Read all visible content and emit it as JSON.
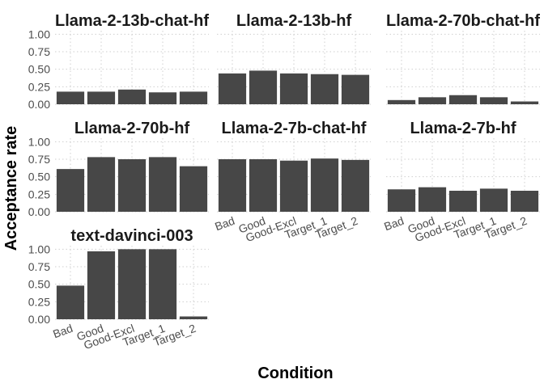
{
  "chart_data": {
    "type": "bar",
    "facet": "wrap",
    "ncol": 3,
    "xlabel": "Condition",
    "ylabel": "Acceptance rate",
    "ylim": [
      0,
      1.05
    ],
    "yticks": [
      "0.00",
      "0.25",
      "0.50",
      "0.75",
      "1.00"
    ],
    "categories": [
      "Bad",
      "Good",
      "Good-Excl",
      "Target_1",
      "Target_2"
    ],
    "grid": true,
    "bar_color": "#474747",
    "grid_color": "#cfcfcf",
    "panels": [
      {
        "title": "Llama-2-13b-chat-hf",
        "values": [
          0.18,
          0.18,
          0.21,
          0.17,
          0.18
        ]
      },
      {
        "title": "Llama-2-13b-hf",
        "values": [
          0.44,
          0.48,
          0.44,
          0.43,
          0.42
        ]
      },
      {
        "title": "Llama-2-70b-chat-hf",
        "values": [
          0.06,
          0.1,
          0.13,
          0.1,
          0.04
        ]
      },
      {
        "title": "Llama-2-70b-hf",
        "values": [
          0.61,
          0.78,
          0.75,
          0.78,
          0.65
        ]
      },
      {
        "title": "Llama-2-7b-chat-hf",
        "values": [
          0.75,
          0.75,
          0.73,
          0.76,
          0.74
        ]
      },
      {
        "title": "Llama-2-7b-hf",
        "values": [
          0.32,
          0.35,
          0.3,
          0.33,
          0.3
        ]
      },
      {
        "title": "text-davinci-003",
        "values": [
          0.48,
          0.97,
          1.0,
          1.0,
          0.04
        ]
      }
    ]
  }
}
